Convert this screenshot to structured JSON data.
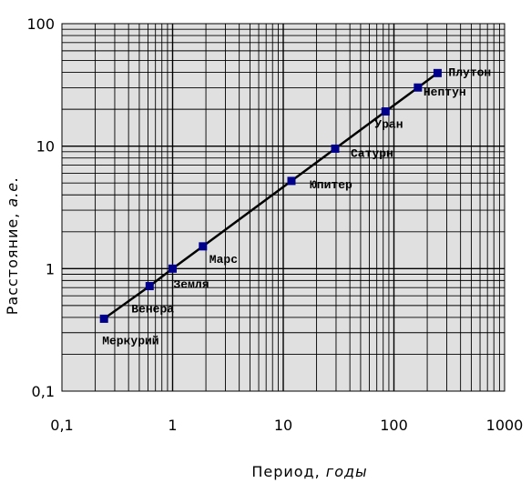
{
  "chart_data": {
    "type": "line",
    "scale": "log-log",
    "xlim": [
      0.1,
      1000
    ],
    "ylim": [
      0.1,
      100
    ],
    "xticks": [
      "0,1",
      "1",
      "10",
      "100",
      "1000"
    ],
    "yticks": [
      "0,1",
      "1",
      "10",
      "100"
    ],
    "xlabel": "Период,",
    "xlabel_unit": "годы",
    "ylabel": "Расстояние,",
    "ylabel_unit": "а.е.",
    "grid": true,
    "plot_background": "#e0e0e0",
    "line_color": "#000000",
    "marker_color": "#00008b",
    "points": [
      {
        "name": "Меркурий",
        "x": 0.24,
        "y": 0.39
      },
      {
        "name": "Венера",
        "x": 0.62,
        "y": 0.72
      },
      {
        "name": "Земля",
        "x": 1.0,
        "y": 1.0
      },
      {
        "name": "Марс",
        "x": 1.88,
        "y": 1.52
      },
      {
        "name": "Юпитер",
        "x": 11.86,
        "y": 5.2
      },
      {
        "name": "Сатурн",
        "x": 29.46,
        "y": 9.54
      },
      {
        "name": "Уран",
        "x": 84.0,
        "y": 19.2
      },
      {
        "name": "Нептун",
        "x": 164.8,
        "y": 30.1
      },
      {
        "name": "Плутон",
        "x": 248.0,
        "y": 39.5
      }
    ]
  }
}
